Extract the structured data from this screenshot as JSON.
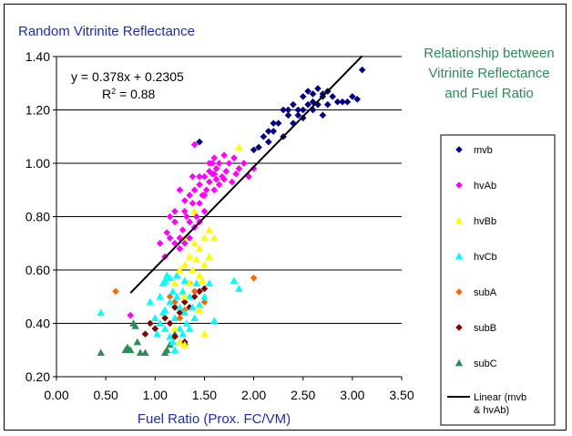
{
  "chart_data": {
    "type": "scatter",
    "title": "Random Vitrinite Reflectance",
    "side_title": [
      "Relationship between",
      "Vitrinite Reflectance",
      "and Fuel Ratio"
    ],
    "xlabel": "Fuel Ratio (Prox. FC/VM)",
    "ylabel": "",
    "xlim": [
      0,
      3.5
    ],
    "ylim": [
      0.2,
      1.4
    ],
    "x_ticks": [
      "0.00",
      "0.50",
      "1.00",
      "1.50",
      "2.00",
      "2.50",
      "3.00",
      "3.50"
    ],
    "y_ticks": [
      "0.20",
      "0.40",
      "0.60",
      "0.80",
      "1.00",
      "1.20",
      "1.40"
    ],
    "grid": "horizontal",
    "legend_position": "right",
    "annotation": {
      "equation": "y = 0.378x + 0.2305",
      "r2_prefix": "R",
      "r2_sup": "2",
      "r2_suffix": " = 0.88"
    },
    "trendline": {
      "name": "Linear (mvb & hvAb)",
      "slope": 0.378,
      "intercept": 0.2305,
      "x_range": [
        0.75,
        3.1
      ],
      "color": "#000000"
    },
    "series": [
      {
        "name": "mvb",
        "marker": "diamond",
        "color": "#000080",
        "points": [
          [
            1.45,
            1.08
          ],
          [
            2.0,
            1.05
          ],
          [
            2.05,
            1.06
          ],
          [
            2.1,
            1.1
          ],
          [
            2.15,
            1.08
          ],
          [
            2.2,
            1.12
          ],
          [
            2.25,
            1.15
          ],
          [
            2.3,
            1.2
          ],
          [
            2.3,
            1.1
          ],
          [
            2.35,
            1.18
          ],
          [
            2.4,
            1.15
          ],
          [
            2.4,
            1.22
          ],
          [
            2.45,
            1.2
          ],
          [
            2.5,
            1.25
          ],
          [
            2.5,
            1.17
          ],
          [
            2.55,
            1.22
          ],
          [
            2.6,
            1.2
          ],
          [
            2.6,
            1.26
          ],
          [
            2.65,
            1.28
          ],
          [
            2.65,
            1.22
          ],
          [
            2.7,
            1.25
          ],
          [
            2.7,
            1.18
          ],
          [
            2.75,
            1.22
          ],
          [
            2.8,
            1.25
          ],
          [
            2.85,
            1.23
          ],
          [
            2.9,
            1.23
          ],
          [
            2.95,
            1.23
          ],
          [
            3.0,
            1.25
          ],
          [
            3.05,
            1.24
          ],
          [
            3.1,
            1.35
          ],
          [
            2.55,
            1.27
          ],
          [
            2.35,
            1.2
          ],
          [
            2.5,
            1.2
          ],
          [
            2.45,
            1.18
          ],
          [
            2.2,
            1.15
          ],
          [
            2.15,
            1.12
          ],
          [
            2.6,
            1.23
          ],
          [
            2.7,
            1.26
          ],
          [
            2.75,
            1.27
          ]
        ]
      },
      {
        "name": "hvAb",
        "marker": "diamond",
        "color": "#ff00ff",
        "points": [
          [
            1.05,
            0.7
          ],
          [
            1.1,
            0.65
          ],
          [
            1.12,
            0.74
          ],
          [
            1.15,
            0.8
          ],
          [
            1.2,
            0.7
          ],
          [
            1.2,
            0.78
          ],
          [
            1.25,
            0.72
          ],
          [
            1.25,
            0.68
          ],
          [
            1.28,
            0.75
          ],
          [
            1.3,
            0.82
          ],
          [
            1.3,
            0.7
          ],
          [
            1.32,
            0.8
          ],
          [
            1.35,
            0.78
          ],
          [
            1.35,
            0.88
          ],
          [
            1.38,
            0.85
          ],
          [
            1.4,
            0.76
          ],
          [
            1.4,
            0.9
          ],
          [
            1.42,
            0.8
          ],
          [
            1.45,
            0.85
          ],
          [
            1.45,
            0.92
          ],
          [
            1.48,
            0.88
          ],
          [
            1.5,
            0.95
          ],
          [
            1.5,
            0.82
          ],
          [
            1.52,
            0.9
          ],
          [
            1.55,
            1.0
          ],
          [
            1.55,
            0.93
          ],
          [
            1.58,
            0.96
          ],
          [
            1.6,
            0.9
          ],
          [
            1.6,
            1.02
          ],
          [
            1.62,
            0.98
          ],
          [
            1.65,
            1.0
          ],
          [
            1.68,
            0.95
          ],
          [
            1.7,
            1.03
          ],
          [
            1.72,
            0.97
          ],
          [
            1.75,
            1.0
          ],
          [
            1.78,
            0.93
          ],
          [
            1.8,
            1.02
          ],
          [
            1.82,
            0.96
          ],
          [
            1.85,
            0.98
          ],
          [
            1.9,
            1.0
          ],
          [
            1.95,
            0.95
          ],
          [
            2.0,
            0.98
          ],
          [
            1.4,
            1.07
          ],
          [
            1.3,
            0.86
          ],
          [
            1.45,
            0.95
          ],
          [
            1.65,
            0.92
          ],
          [
            1.35,
            0.72
          ],
          [
            1.25,
            0.9
          ],
          [
            1.15,
            0.72
          ],
          [
            1.38,
            0.95
          ],
          [
            1.5,
            0.88
          ],
          [
            1.7,
            0.94
          ],
          [
            1.55,
            0.97
          ],
          [
            1.6,
            0.96
          ],
          [
            0.75,
            0.43
          ],
          [
            1.2,
            0.82
          ],
          [
            1.45,
            0.78
          ],
          [
            1.58,
            1.0
          ],
          [
            1.62,
            0.94
          ]
        ]
      },
      {
        "name": "hvBb",
        "marker": "triangle",
        "color": "#ffff00",
        "points": [
          [
            1.85,
            1.06
          ],
          [
            1.2,
            0.55
          ],
          [
            1.25,
            0.6
          ],
          [
            1.3,
            0.62
          ],
          [
            1.35,
            0.65
          ],
          [
            1.38,
            0.6
          ],
          [
            1.4,
            0.7
          ],
          [
            1.45,
            0.68
          ],
          [
            1.45,
            0.58
          ],
          [
            1.5,
            0.72
          ],
          [
            1.5,
            0.62
          ],
          [
            1.55,
            0.75
          ],
          [
            1.55,
            0.65
          ],
          [
            1.6,
            0.72
          ],
          [
            1.35,
            0.55
          ],
          [
            1.4,
            0.82
          ],
          [
            1.3,
            0.5
          ],
          [
            1.25,
            0.33
          ],
          [
            1.3,
            0.32
          ],
          [
            1.2,
            0.38
          ],
          [
            1.45,
            0.45
          ],
          [
            1.5,
            0.36
          ],
          [
            1.32,
            0.72
          ],
          [
            1.42,
            0.64
          ],
          [
            1.48,
            0.56
          ]
        ]
      },
      {
        "name": "hvCb",
        "marker": "triangle",
        "color": "#00ffff",
        "points": [
          [
            0.45,
            0.44
          ],
          [
            0.95,
            0.48
          ],
          [
            1.0,
            0.42
          ],
          [
            1.05,
            0.5
          ],
          [
            1.05,
            0.4
          ],
          [
            1.08,
            0.55
          ],
          [
            1.1,
            0.45
          ],
          [
            1.1,
            0.38
          ],
          [
            1.12,
            0.58
          ],
          [
            1.15,
            0.48
          ],
          [
            1.15,
            0.35
          ],
          [
            1.18,
            0.52
          ],
          [
            1.2,
            0.42
          ],
          [
            1.2,
            0.3
          ],
          [
            1.22,
            0.58
          ],
          [
            1.25,
            0.46
          ],
          [
            1.25,
            0.38
          ],
          [
            1.28,
            0.52
          ],
          [
            1.3,
            0.56
          ],
          [
            1.3,
            0.44
          ],
          [
            1.32,
            0.4
          ],
          [
            1.35,
            0.5
          ],
          [
            1.38,
            0.46
          ],
          [
            1.4,
            0.42
          ],
          [
            1.42,
            0.55
          ],
          [
            1.45,
            0.47
          ],
          [
            1.5,
            0.5
          ],
          [
            1.55,
            0.55
          ],
          [
            1.6,
            0.41
          ],
          [
            1.8,
            0.56
          ],
          [
            1.85,
            0.53
          ],
          [
            1.1,
            0.56
          ],
          [
            1.15,
            0.57
          ],
          [
            1.02,
            0.36
          ],
          [
            1.18,
            0.33
          ],
          [
            1.28,
            0.36
          ],
          [
            1.35,
            0.38
          ],
          [
            1.08,
            0.44
          ],
          [
            1.22,
            0.5
          ]
        ]
      },
      {
        "name": "subA",
        "marker": "diamond",
        "color": "#ff6600",
        "points": [
          [
            0.6,
            0.52
          ],
          [
            2.0,
            0.57
          ],
          [
            1.15,
            0.5
          ],
          [
            1.3,
            0.45
          ],
          [
            1.25,
            0.42
          ],
          [
            1.4,
            0.52
          ],
          [
            1.5,
            0.48
          ],
          [
            1.35,
            0.55
          ],
          [
            1.2,
            0.48
          ]
        ]
      },
      {
        "name": "subB",
        "marker": "diamond",
        "color": "#800000",
        "points": [
          [
            0.9,
            0.36
          ],
          [
            0.95,
            0.4
          ],
          [
            1.0,
            0.38
          ],
          [
            1.1,
            0.42
          ],
          [
            1.15,
            0.4
          ],
          [
            1.2,
            0.46
          ],
          [
            1.25,
            0.44
          ],
          [
            1.3,
            0.48
          ],
          [
            1.35,
            0.46
          ],
          [
            1.4,
            0.5
          ],
          [
            1.45,
            0.52
          ],
          [
            1.5,
            0.53
          ],
          [
            1.2,
            0.35
          ],
          [
            1.3,
            0.33
          ]
        ]
      },
      {
        "name": "subC",
        "marker": "triangle",
        "color": "#2e8b57",
        "points": [
          [
            0.45,
            0.29
          ],
          [
            0.7,
            0.3
          ],
          [
            0.72,
            0.31
          ],
          [
            0.75,
            0.3
          ],
          [
            0.78,
            0.4
          ],
          [
            0.82,
            0.33
          ],
          [
            0.85,
            0.29
          ],
          [
            0.9,
            0.29
          ],
          [
            1.1,
            0.29
          ],
          [
            1.15,
            0.32
          ],
          [
            1.2,
            0.36
          ],
          [
            1.25,
            0.33
          ],
          [
            1.3,
            0.33
          ],
          [
            0.8,
            0.39
          ],
          [
            1.12,
            0.3
          ]
        ]
      }
    ]
  }
}
